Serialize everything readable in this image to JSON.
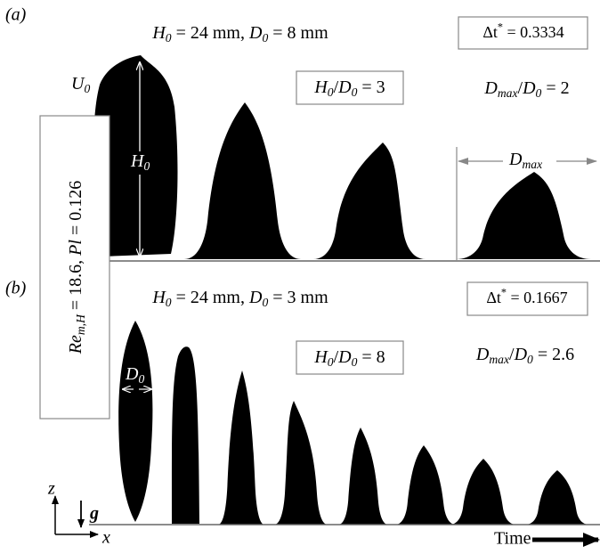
{
  "panel_a": {
    "label": "(a)",
    "title": [
      "H",
      "0",
      " = 24 mm, ",
      "D",
      "0",
      " = 8 mm"
    ],
    "time_step": [
      "Δt",
      "*",
      " = 0.3334"
    ],
    "ratio": [
      "H",
      "0",
      "/",
      "D",
      "0",
      " = 3"
    ],
    "spread": [
      "D",
      "max",
      "/",
      "D",
      "0",
      " = 2"
    ],
    "velocity": [
      "U",
      "0"
    ],
    "height": [
      "H",
      "0"
    ],
    "max_diameter": [
      "D",
      "max"
    ]
  },
  "panel_b": {
    "label": "(b)",
    "title": [
      "H",
      "0",
      " = 24 mm, ",
      "D",
      "0",
      " = 3 mm"
    ],
    "time_step": [
      "Δt",
      "*",
      " = 0.1667"
    ],
    "ratio": [
      "H",
      "0",
      "/",
      "D",
      "0",
      " = 8"
    ],
    "spread": [
      "D",
      "max",
      "/",
      "D",
      "0",
      " = 2.6"
    ],
    "diameter": [
      "D",
      "0"
    ]
  },
  "side_label": [
    "Re",
    "m,H",
    " = 18.6, ",
    "Pl",
    " = 0.126"
  ],
  "axes": {
    "z": "z",
    "gravity": "g",
    "x": "x"
  },
  "time": "Time"
}
